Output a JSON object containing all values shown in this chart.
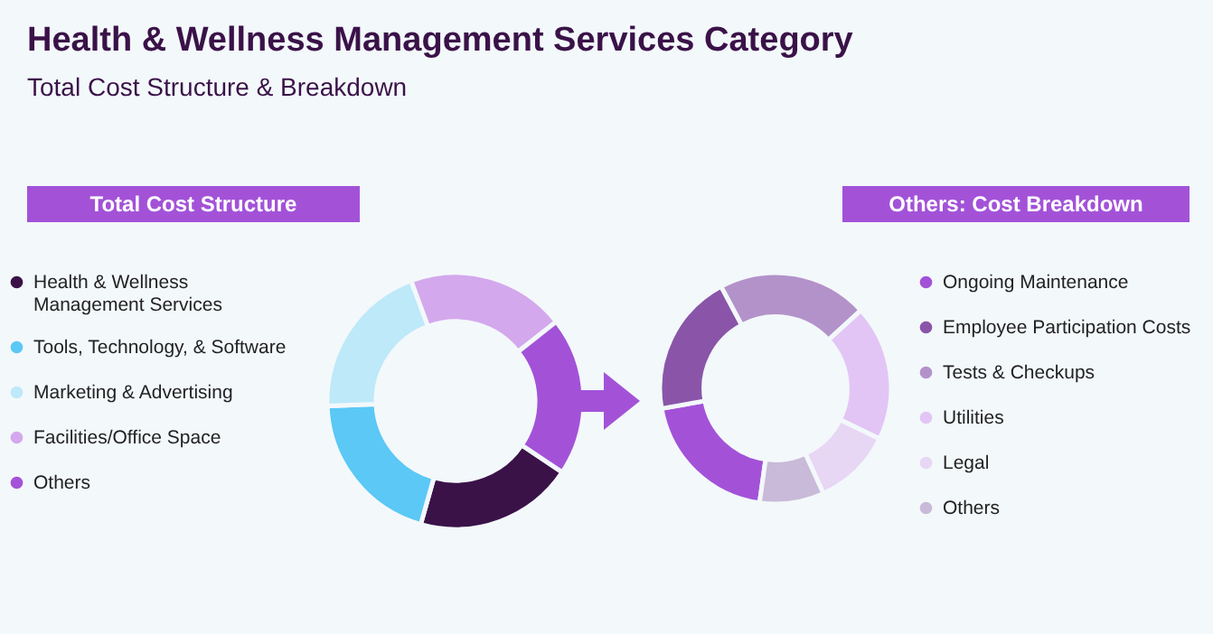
{
  "chart_data": [
    {
      "type": "donut",
      "title": "Health & Wellness Management Services Category",
      "subtitle": "Total Cost Structure & Breakdown",
      "legend_title": "Total Cost Structure",
      "legend": "left",
      "categories": [
        "Health & Wellness Management Services",
        "Tools, Technology, & Software",
        "Marketing & Advertising",
        "Facilities/Office Space",
        "Others"
      ],
      "values": [
        20,
        20,
        20,
        20,
        20
      ],
      "colors": [
        "#3a1248",
        "#5bc8f5",
        "#bde9f9",
        "#d4a8ec",
        "#a352d8"
      ]
    },
    {
      "type": "donut",
      "legend_title": "Others: Cost Breakdown",
      "legend": "right",
      "categories": [
        "Ongoing Maintenance",
        "Employee Participation Costs",
        "Tests & Checkups",
        "Utilities",
        "Legal",
        "Others"
      ],
      "values": [
        20,
        20,
        21,
        19,
        11,
        9
      ],
      "colors": [
        "#a352d8",
        "#8a55a8",
        "#b392c9",
        "#e2c5f5",
        "#e8d6f5",
        "#c8bad8"
      ]
    }
  ]
}
